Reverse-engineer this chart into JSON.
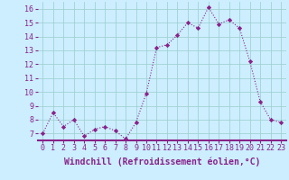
{
  "x": [
    0,
    1,
    2,
    3,
    4,
    5,
    6,
    7,
    8,
    9,
    10,
    11,
    12,
    13,
    14,
    15,
    16,
    17,
    18,
    19,
    20,
    21,
    22,
    23
  ],
  "y": [
    7.0,
    8.5,
    7.5,
    8.0,
    6.8,
    7.3,
    7.5,
    7.2,
    6.6,
    7.8,
    9.9,
    13.2,
    13.4,
    14.1,
    15.0,
    14.6,
    16.1,
    14.9,
    15.2,
    14.6,
    12.2,
    9.3,
    8.0,
    7.8
  ],
  "line_color": "#882288",
  "marker": "D",
  "marker_size": 2.2,
  "bg_color": "#cceeff",
  "plot_bg_color": "#cceeff",
  "grid_color": "#99cccc",
  "separator_color": "#882288",
  "xlabel": "Windchill (Refroidissement éolien,°C)",
  "xlabel_fontsize": 7,
  "xlim": [
    -0.5,
    23.5
  ],
  "ylim": [
    6.5,
    16.5
  ],
  "yticks": [
    7,
    8,
    9,
    10,
    11,
    12,
    13,
    14,
    15,
    16
  ],
  "xticks": [
    0,
    1,
    2,
    3,
    4,
    5,
    6,
    7,
    8,
    9,
    10,
    11,
    12,
    13,
    14,
    15,
    16,
    17,
    18,
    19,
    20,
    21,
    22,
    23
  ],
  "tick_fontsize": 6,
  "line_width": 0.8,
  "tick_color": "#882288",
  "label_color": "#882288"
}
